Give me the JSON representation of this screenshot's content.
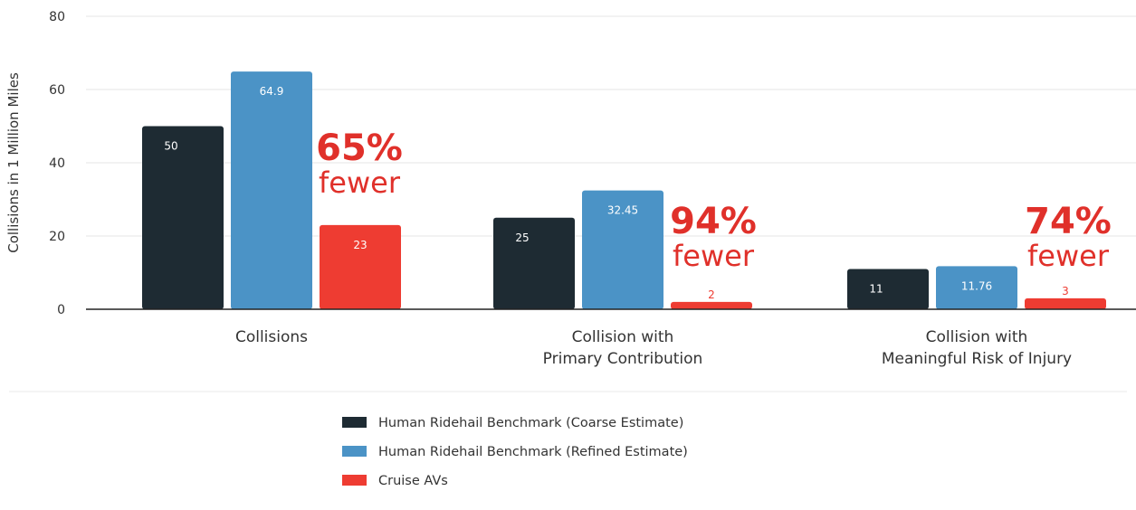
{
  "chart_data": {
    "type": "bar",
    "ylabel": "Collisions in 1 Million Miles",
    "ylim": [
      0,
      80
    ],
    "yticks": [
      0,
      20,
      40,
      60,
      80
    ],
    "grid": true,
    "legend_position": "bottom",
    "categories": [
      [
        "Collisions"
      ],
      [
        "Collision with",
        "Primary Contribution"
      ],
      [
        "Collision with",
        "Meaningful Risk of Injury"
      ]
    ],
    "series": [
      {
        "name": "Human Ridehail Benchmark (Coarse Estimate)",
        "color": "#1e2b33",
        "values": [
          50,
          25,
          11
        ],
        "labels": [
          "50",
          "25",
          "11"
        ]
      },
      {
        "name": "Human Ridehail Benchmark (Refined Estimate)",
        "color": "#4b93c6",
        "values": [
          64.9,
          32.45,
          11.76
        ],
        "labels": [
          "64.9",
          "32.45",
          "11.76"
        ]
      },
      {
        "name": "Cruise AVs",
        "color": "#ee3c32",
        "values": [
          23,
          2,
          3
        ],
        "labels": [
          "23",
          "2",
          "3"
        ]
      }
    ],
    "annotations": [
      {
        "percent": "65%",
        "word": "fewer",
        "category": 0
      },
      {
        "percent": "94%",
        "word": "fewer",
        "category": 1
      },
      {
        "percent": "74%",
        "word": "fewer",
        "category": 2
      }
    ],
    "annotation_color": "#e0302a"
  }
}
